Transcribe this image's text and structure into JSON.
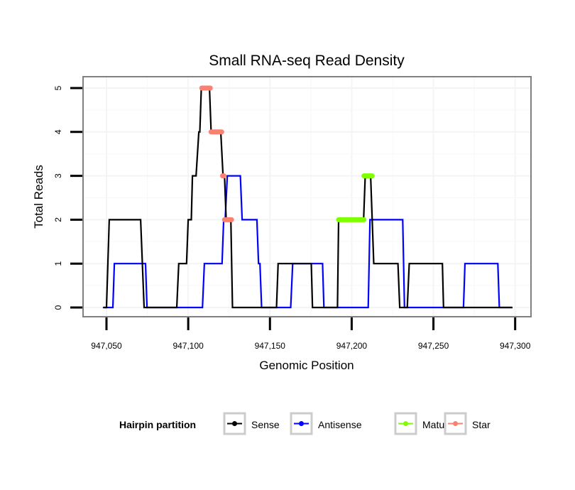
{
  "chart_data": {
    "type": "line",
    "title": "Small RNA-seq Read Density",
    "xlabel": "Genomic Position",
    "ylabel": "Total Reads",
    "xlim": [
      947037,
      947310
    ],
    "ylim": [
      -0.2,
      5.25
    ],
    "x_ticks": [
      947050,
      947100,
      947150,
      947200,
      947250,
      947300
    ],
    "x_tick_labels": [
      "947,050",
      "947,100",
      "947,150",
      "947,200",
      "947,250",
      "947,300"
    ],
    "y_ticks": [
      0,
      1,
      2,
      3,
      4,
      5
    ],
    "y_tick_labels": [
      "0",
      "1",
      "2",
      "3",
      "4",
      "5"
    ],
    "grid": true,
    "legend": {
      "title": "Hairpin partition",
      "placement": "bottom",
      "entries": [
        {
          "label": "Sense",
          "color": "#000000"
        },
        {
          "label": "Antisense",
          "color": "#0000ff"
        },
        {
          "label": "Mature",
          "color": "#7fff00"
        },
        {
          "label": "Star",
          "color": "#fa8072"
        }
      ]
    },
    "series": [
      {
        "name": "Sense",
        "color": "#000000",
        "points": [
          [
            947048.3,
            0
          ],
          [
            947050,
            0
          ],
          [
            947051.7,
            2
          ],
          [
            947070.9,
            2
          ],
          [
            947073,
            0
          ],
          [
            947093,
            0
          ],
          [
            947094.2,
            1
          ],
          [
            947099,
            1
          ],
          [
            947100,
            2
          ],
          [
            947101.9,
            2
          ],
          [
            947102.6,
            3
          ],
          [
            947104.8,
            3
          ],
          [
            947106.5,
            4
          ],
          [
            947107.1,
            4
          ],
          [
            947108,
            5
          ],
          [
            947113,
            5
          ],
          [
            947114,
            4
          ],
          [
            947119.9,
            4
          ],
          [
            947121.3,
            3
          ],
          [
            947122.2,
            3
          ],
          [
            947123.2,
            2
          ],
          [
            947126.1,
            2
          ],
          [
            947127.1,
            0
          ],
          [
            947154,
            0
          ],
          [
            947155,
            1
          ],
          [
            947175.3,
            1
          ],
          [
            947176,
            0
          ],
          [
            947191.3,
            0
          ],
          [
            947192,
            2
          ],
          [
            947207.3,
            2
          ],
          [
            947208.3,
            3
          ],
          [
            947211.6,
            3
          ],
          [
            947213.5,
            1
          ],
          [
            947228.3,
            1
          ],
          [
            947229.4,
            0
          ],
          [
            947234,
            0
          ],
          [
            947235.2,
            1
          ],
          [
            947255.5,
            1
          ],
          [
            947256.2,
            0
          ],
          [
            947298.3,
            0
          ]
        ]
      },
      {
        "name": "Antisense",
        "color": "#0000ff",
        "points": [
          [
            947047.8,
            0
          ],
          [
            947053.9,
            0
          ],
          [
            947054.8,
            1
          ],
          [
            947073.9,
            1
          ],
          [
            947074.8,
            0
          ],
          [
            947108.7,
            0
          ],
          [
            947109.9,
            1
          ],
          [
            947120.7,
            1
          ],
          [
            947121.7,
            2
          ],
          [
            947122.6,
            2
          ],
          [
            947123.9,
            3
          ],
          [
            947131.9,
            3
          ],
          [
            947133,
            2
          ],
          [
            947142,
            2
          ],
          [
            947143,
            1
          ],
          [
            947143.9,
            1
          ],
          [
            947144.9,
            0
          ],
          [
            947162.7,
            0
          ],
          [
            947163.9,
            1
          ],
          [
            947182.2,
            1
          ],
          [
            947183,
            0
          ],
          [
            947210.1,
            0
          ],
          [
            947211.2,
            2
          ],
          [
            947231.2,
            2
          ],
          [
            947232.3,
            0
          ],
          [
            947268.4,
            0
          ],
          [
            947269.3,
            1
          ],
          [
            947289.4,
            1
          ],
          [
            947290.3,
            0
          ],
          [
            947298.3,
            0
          ]
        ]
      },
      {
        "name": "Mature",
        "color": "#7fff00",
        "segments": [
          [
            [
              947192,
              2
            ],
            [
              947207.5,
              2
            ]
          ],
          [
            [
              947207.5,
              3
            ],
            [
              947212.5,
              3
            ]
          ]
        ]
      },
      {
        "name": "Star",
        "color": "#fa8072",
        "segments": [
          [
            [
              947108.3,
              5
            ],
            [
              947113.5,
              5
            ]
          ],
          [
            [
              947114,
              4
            ],
            [
              947120.5,
              4
            ]
          ],
          [
            [
              947121,
              3
            ],
            [
              947121.8,
              3
            ]
          ],
          [
            [
              947122.2,
              2
            ],
            [
              947126.5,
              2
            ]
          ]
        ]
      }
    ]
  }
}
